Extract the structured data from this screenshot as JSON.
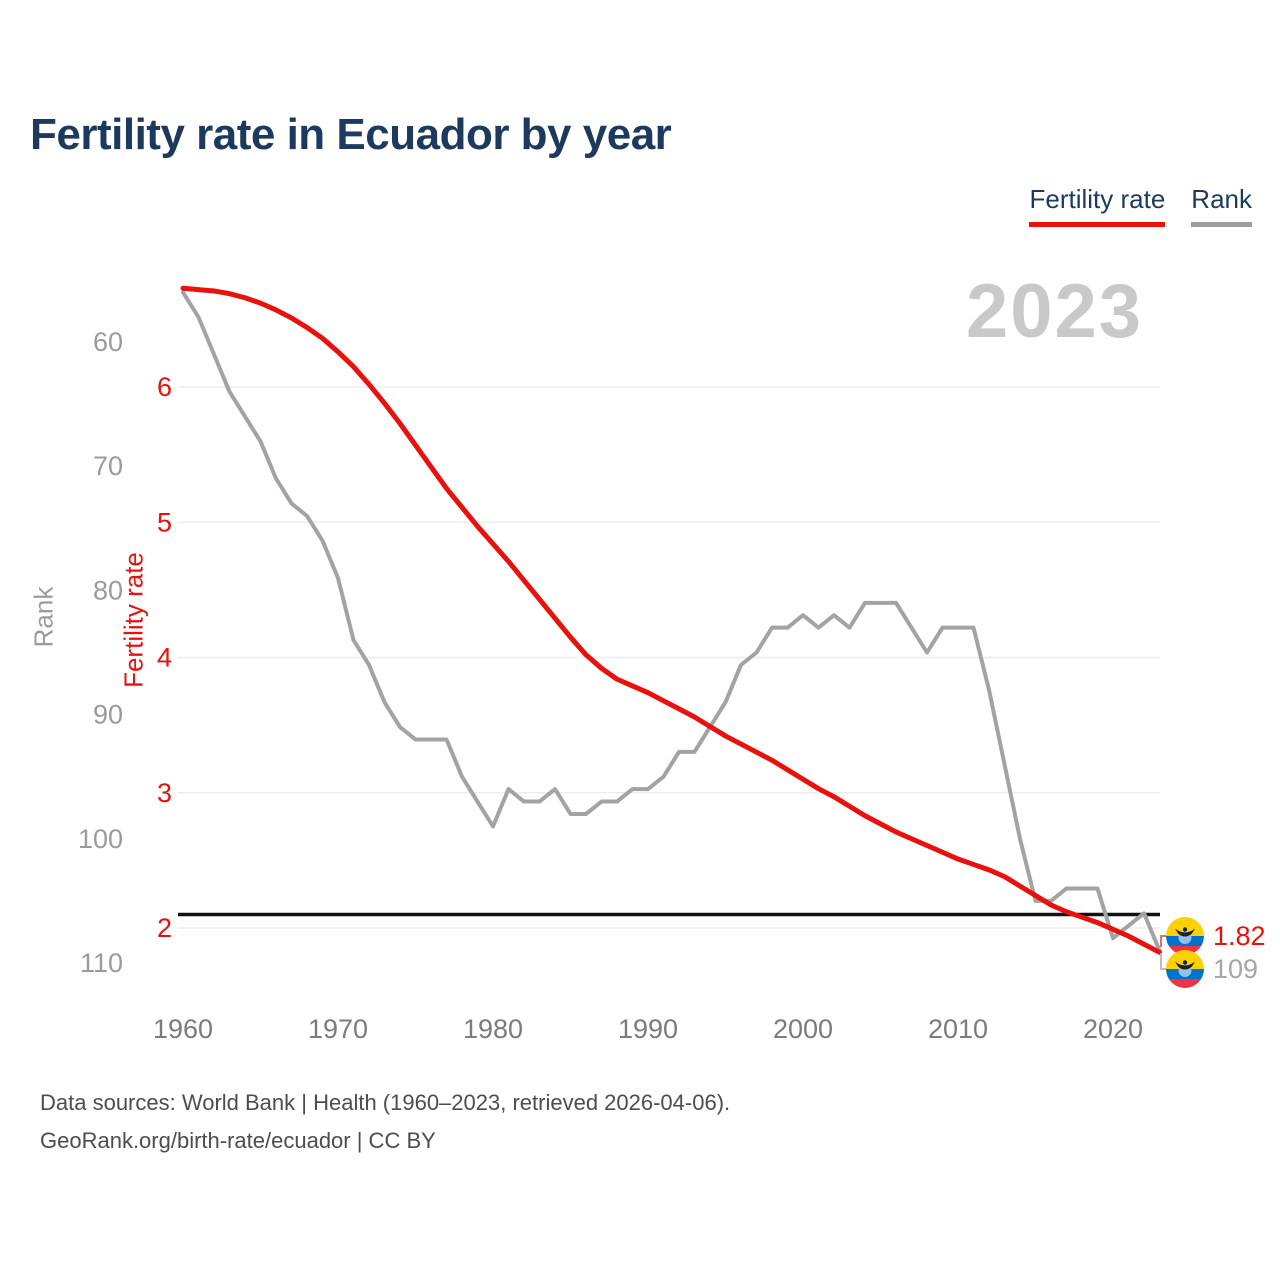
{
  "title": "Fertility rate in Ecuador by year",
  "legend": {
    "items": [
      {
        "label": "Fertility rate",
        "color": "#e8110d"
      },
      {
        "label": "Rank",
        "color": "#9e9e9e"
      }
    ]
  },
  "watermark": "2023",
  "axes": {
    "rank": {
      "title": "Rank",
      "ticks": [
        60,
        70,
        80,
        90,
        100,
        110
      ]
    },
    "fertility": {
      "title": "Fertility rate",
      "ticks": [
        6,
        5,
        4,
        3,
        2
      ]
    },
    "x": {
      "ticks": [
        1960,
        1970,
        1980,
        1990,
        2000,
        2010,
        2020
      ]
    }
  },
  "end_labels": [
    {
      "value": "1.82",
      "color": "#e8110d",
      "icon": "ecuador-flag-icon"
    },
    {
      "value": "109",
      "color": "#a6a6a6",
      "icon": "ecuador-flag-icon"
    }
  ],
  "flag_colors": {
    "yellow": "#ffd100",
    "blue": "#0072ce",
    "red": "#ef3340"
  },
  "footer": {
    "line1": "Data sources: World Bank | Health (1960–2023, retrieved 2026-04-06).",
    "line2": "GeoRank.org/birth-rate/ecuador | CC BY"
  },
  "chart_data": {
    "type": "line",
    "title": "Fertility rate in Ecuador by year",
    "x": [
      1960,
      1961,
      1962,
      1963,
      1964,
      1965,
      1966,
      1967,
      1968,
      1969,
      1970,
      1971,
      1972,
      1973,
      1974,
      1975,
      1976,
      1977,
      1978,
      1979,
      1980,
      1981,
      1982,
      1983,
      1984,
      1985,
      1986,
      1987,
      1988,
      1989,
      1990,
      1991,
      1992,
      1993,
      1994,
      1995,
      1996,
      1997,
      1998,
      1999,
      2000,
      2001,
      2002,
      2003,
      2004,
      2005,
      2006,
      2007,
      2008,
      2009,
      2010,
      2011,
      2012,
      2013,
      2014,
      2015,
      2016,
      2017,
      2018,
      2019,
      2020,
      2021,
      2022,
      2023
    ],
    "series": [
      {
        "name": "Fertility rate",
        "axis": "fertility",
        "color": "#e8110d",
        "values": [
          6.73,
          6.72,
          6.71,
          6.69,
          6.66,
          6.62,
          6.57,
          6.51,
          6.44,
          6.36,
          6.26,
          6.15,
          6.02,
          5.88,
          5.73,
          5.57,
          5.41,
          5.25,
          5.11,
          4.97,
          4.84,
          4.71,
          4.57,
          4.43,
          4.29,
          4.15,
          4.02,
          3.92,
          3.84,
          3.79,
          3.74,
          3.68,
          3.62,
          3.56,
          3.49,
          3.42,
          3.36,
          3.3,
          3.24,
          3.17,
          3.1,
          3.03,
          2.97,
          2.9,
          2.83,
          2.77,
          2.71,
          2.66,
          2.61,
          2.56,
          2.51,
          2.47,
          2.43,
          2.38,
          2.31,
          2.24,
          2.17,
          2.12,
          2.08,
          2.04,
          1.99,
          1.94,
          1.88,
          1.82
        ]
      },
      {
        "name": "Rank",
        "axis": "rank",
        "color": "#a3a3a3",
        "values": [
          56,
          58,
          61,
          64,
          66,
          68,
          71,
          73,
          74,
          76,
          79,
          84,
          86,
          89,
          91,
          92,
          92,
          92,
          95,
          97,
          99,
          96,
          97,
          97,
          96,
          98,
          98,
          97,
          97,
          96,
          96,
          95,
          93,
          93,
          91,
          89,
          86,
          85,
          83,
          83,
          82,
          83,
          82,
          83,
          81,
          81,
          81,
          83,
          85,
          83,
          83,
          83,
          88,
          94,
          100,
          105,
          105,
          104,
          104,
          104,
          108,
          107,
          106,
          109
        ]
      }
    ],
    "fertility_axis": {
      "range": [
        1.7,
        6.9
      ],
      "ticks": [
        6,
        5,
        4,
        3,
        2
      ]
    },
    "rank_axis": {
      "range": [
        54,
        112
      ],
      "ticks": [
        60,
        70,
        80,
        90,
        100,
        110
      ],
      "inverted": true
    },
    "x_ticks": [
      1960,
      1970,
      1980,
      1990,
      2000,
      2010,
      2020
    ],
    "grid": "horizontal",
    "legend_position": "top-right",
    "reference_line": {
      "value": 2.1,
      "color": "#121212"
    },
    "annotations": {
      "year_watermark": "2023",
      "end_fertility": "1.82",
      "end_rank": "109"
    }
  }
}
